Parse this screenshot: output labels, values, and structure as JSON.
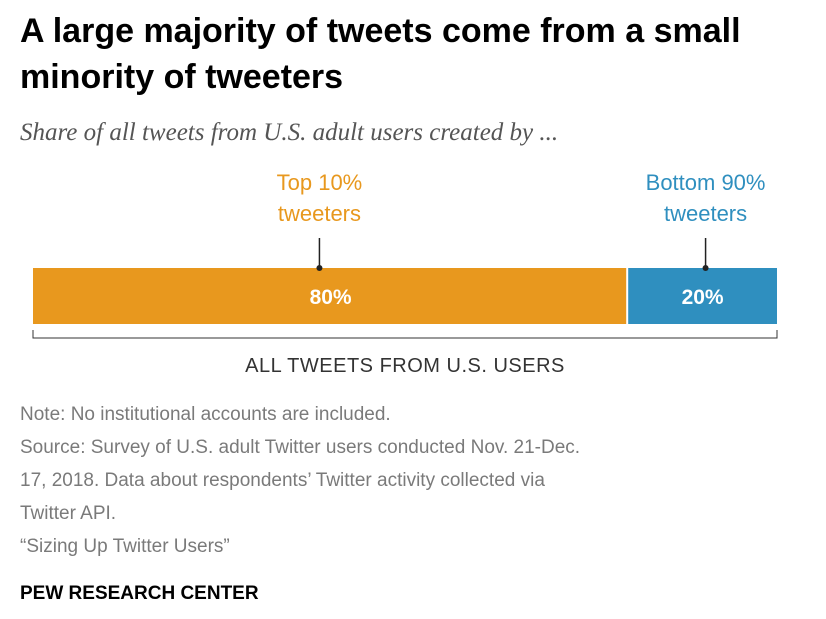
{
  "chart_data": {
    "type": "bar",
    "title": "A large majority of tweets come from a small minority of tweeters",
    "subtitle": "Share of all tweets from U.S. adult users created by ...",
    "xlabel": "ALL TWEETS FROM U.S. USERS",
    "ylabel": "",
    "unit": "%",
    "categories": [
      "Top 10% tweeters",
      "Bottom 90% tweeters"
    ],
    "values": [
      80,
      20
    ],
    "value_labels": [
      "80%",
      "20%"
    ],
    "label_lines": [
      [
        "Top 10%",
        "tweeters"
      ],
      [
        "Bottom 90%",
        "tweeters"
      ]
    ],
    "colors": [
      "#e8981e",
      "#2f8fbf"
    ],
    "stacked": true,
    "xlim": [
      0,
      100
    ],
    "grid": false
  },
  "notes": {
    "note": "Note: No institutional accounts are included.",
    "source": "Source: Survey of U.S. adult Twitter users conducted Nov. 21-Dec.\n17, 2018. Data about respondents’ Twitter activity collected via\nTwitter API.",
    "report": "“Sizing Up Twitter Users”"
  },
  "brand": "PEW RESEARCH CENTER"
}
